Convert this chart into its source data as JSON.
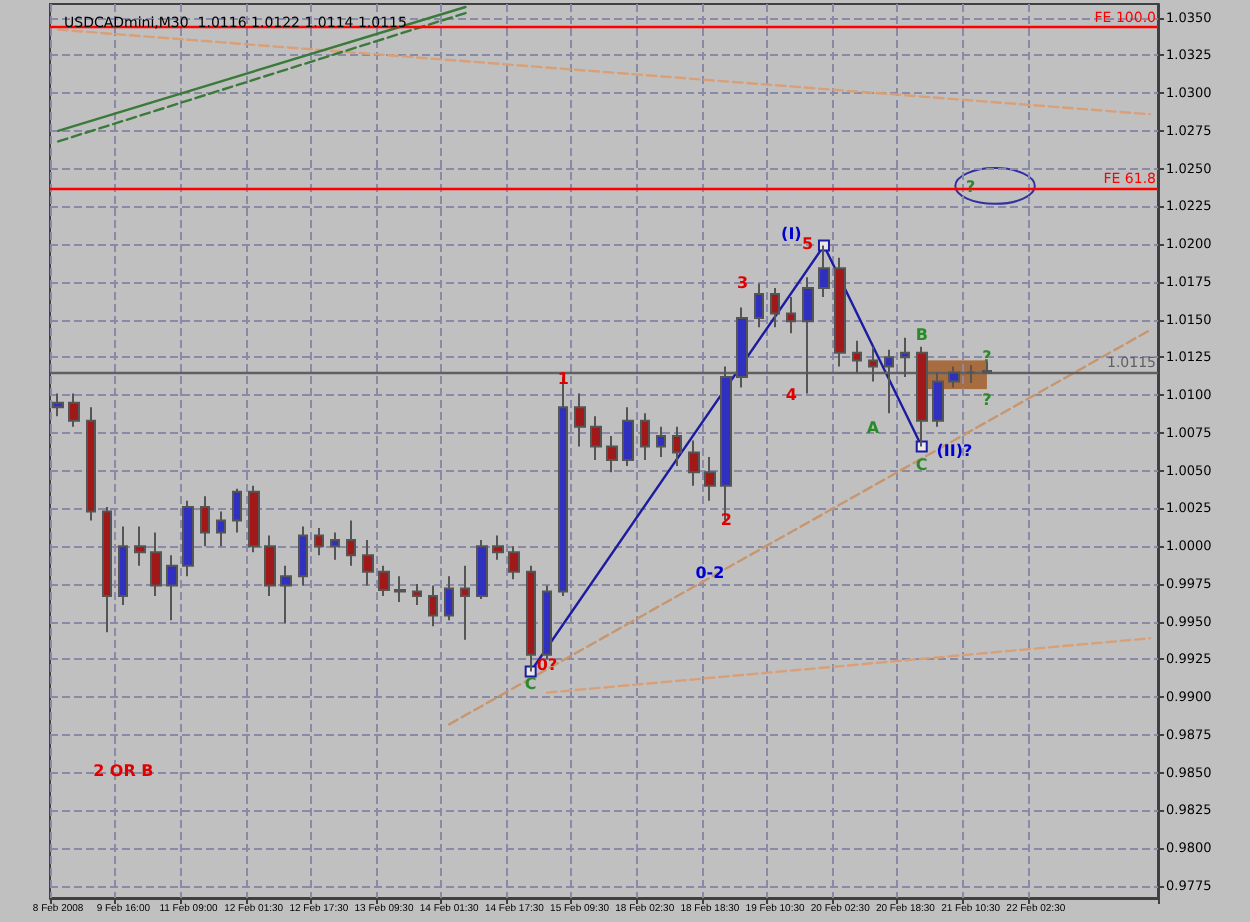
{
  "chart_data": {
    "type": "candlestick",
    "title": "USDCADmini,M30  1.0116 1.0122 1.0114 1.0115",
    "categories": [
      "8 Feb 2008",
      null,
      null,
      null,
      "9 Feb 16:00",
      null,
      null,
      null,
      "11 Feb 09:00",
      null,
      null,
      null,
      "12 Feb 01:30",
      null,
      null,
      null,
      "12 Feb 17:30",
      null,
      null,
      null,
      "13 Feb 09:30",
      null,
      null,
      null,
      "14 Feb 01:30",
      null,
      null,
      null,
      "14 Feb 17:30",
      null,
      null,
      null,
      "15 Feb 09:30",
      null,
      null,
      null,
      "18 Feb 02:30",
      null,
      null,
      null,
      "18 Feb 18:30",
      null,
      null,
      null,
      "19 Feb 10:30",
      null,
      null,
      null,
      "20 Feb 02:30",
      null,
      null,
      null,
      "20 Feb 18:30",
      null,
      null,
      null,
      "21 Feb 10:30",
      null,
      null,
      null,
      "22 Feb 02:30",
      null,
      null,
      null,
      null,
      null,
      null,
      null
    ],
    "ohlc": [
      [
        1.0092,
        1.0101,
        1.0086,
        1.0095
      ],
      [
        1.0095,
        1.0101,
        1.0079,
        1.0083
      ],
      [
        1.0083,
        1.0092,
        1.0017,
        1.0023
      ],
      [
        1.0023,
        1.0026,
        0.9943,
        0.9967
      ],
      [
        0.9967,
        1.0013,
        0.9961,
        1.0
      ],
      [
        1.0,
        1.0013,
        0.9987,
        0.9996
      ],
      [
        0.9996,
        1.0009,
        0.9967,
        0.9974
      ],
      [
        0.9974,
        0.9994,
        0.9951,
        0.9987
      ],
      [
        0.9987,
        1.003,
        0.998,
        1.0026
      ],
      [
        1.0026,
        1.0033,
        1.0,
        1.0009
      ],
      [
        1.0009,
        1.0023,
        1.0,
        1.0017
      ],
      [
        1.0017,
        1.0038,
        1.0009,
        1.0036
      ],
      [
        1.0036,
        1.004,
        0.9996,
        1.0
      ],
      [
        1.0,
        1.0007,
        0.9967,
        0.9974
      ],
      [
        0.9974,
        0.9987,
        0.9949,
        0.998
      ],
      [
        0.998,
        1.0013,
        0.9974,
        1.0007
      ],
      [
        1.0007,
        1.0012,
        0.9994,
        1.0
      ],
      [
        1.0,
        1.0009,
        0.9991,
        1.0004
      ],
      [
        1.0004,
        1.0017,
        0.9987,
        0.9994
      ],
      [
        0.9994,
        1.0004,
        0.9974,
        0.9983
      ],
      [
        0.9983,
        0.9987,
        0.9967,
        0.9971
      ],
      [
        0.9971,
        0.998,
        0.9963,
        0.997
      ],
      [
        0.997,
        0.9975,
        0.9961,
        0.9967
      ],
      [
        0.9967,
        0.9974,
        0.9947,
        0.9954
      ],
      [
        0.9954,
        0.998,
        0.9951,
        0.9972
      ],
      [
        0.9972,
        0.9987,
        0.9938,
        0.9967
      ],
      [
        0.9967,
        1.0004,
        0.9965,
        1.0
      ],
      [
        1.0,
        1.0007,
        0.9991,
        0.9996
      ],
      [
        0.9996,
        1.0,
        0.9978,
        0.9983
      ],
      [
        0.9983,
        0.9987,
        0.9917,
        0.9928
      ],
      [
        0.9928,
        0.9974,
        0.9925,
        0.997
      ],
      [
        0.997,
        1.0112,
        0.9967,
        1.0092
      ],
      [
        1.0092,
        1.0101,
        1.0066,
        1.0079
      ],
      [
        1.0079,
        1.0086,
        1.0057,
        1.0066
      ],
      [
        1.0066,
        1.0073,
        1.0049,
        1.0057
      ],
      [
        1.0057,
        1.0092,
        1.0053,
        1.0083
      ],
      [
        1.0083,
        1.0088,
        1.0057,
        1.0066
      ],
      [
        1.0066,
        1.0079,
        1.0059,
        1.0073
      ],
      [
        1.0073,
        1.0079,
        1.0053,
        1.0062
      ],
      [
        1.0062,
        1.007,
        1.004,
        1.0049
      ],
      [
        1.0049,
        1.0059,
        1.003,
        1.004
      ],
      [
        1.004,
        1.0119,
        1.0017,
        1.0112
      ],
      [
        1.0112,
        1.0158,
        1.0105,
        1.0151
      ],
      [
        1.0151,
        1.0174,
        1.0145,
        1.0167
      ],
      [
        1.0167,
        1.0171,
        1.0145,
        1.0154
      ],
      [
        1.0154,
        1.0165,
        1.0141,
        1.0149
      ],
      [
        1.0149,
        1.0178,
        1.0101,
        1.0171
      ],
      [
        1.0171,
        1.0199,
        1.0165,
        1.0184
      ],
      [
        1.0184,
        1.0191,
        1.0119,
        1.0128
      ],
      [
        1.0128,
        1.0136,
        1.0115,
        1.0123
      ],
      [
        1.0123,
        1.0132,
        1.0109,
        1.0119
      ],
      [
        1.0119,
        1.013,
        1.0088,
        1.0125
      ],
      [
        1.0125,
        1.0138,
        1.0112,
        1.0128
      ],
      [
        1.0128,
        1.0132,
        1.0066,
        1.0083
      ],
      [
        1.0083,
        1.0115,
        1.0079,
        1.0109
      ],
      [
        1.0109,
        1.0119,
        1.0105,
        1.0115
      ],
      [
        1.0115,
        1.012,
        1.0108,
        1.0115
      ],
      [
        1.0116,
        1.0122,
        1.0114,
        1.0115
      ],
      null,
      null,
      null,
      null,
      null,
      null,
      null,
      null,
      null,
      null
    ],
    "ylim": [
      0.9767,
      1.0359
    ],
    "yticks": [
      0.9775,
      {
        "value": 0.98,
        "label": "0.9800"
      },
      0.9825,
      {
        "value": 0.985,
        "label": "0.9850"
      },
      0.9875,
      {
        "value": 0.99,
        "label": "0.9900"
      },
      0.9925,
      {
        "value": 0.995,
        "label": "0.9950"
      },
      0.9975,
      {
        "value": 1,
        "label": "1.0000"
      },
      1.0025,
      {
        "value": 1.005,
        "label": "1.0050"
      },
      1.0075,
      {
        "value": 1.01,
        "label": "1.0100"
      },
      1.0125,
      {
        "value": 1.015,
        "label": "1.0150"
      },
      1.0175,
      {
        "value": 1.02,
        "label": "1.0200"
      },
      1.0225,
      {
        "value": 1.025,
        "label": "1.0250"
      },
      1.0275,
      {
        "value": 1.03,
        "label": "1.0300"
      },
      1.0325,
      {
        "value": 1.035,
        "label": "1.0350"
      }
    ],
    "grid": true,
    "series": [
      {
        "type": "line",
        "color": "#1c1ca0",
        "marker": "square",
        "line_style": "solid",
        "values": [
          null,
          null,
          null,
          null,
          null,
          null,
          null,
          null,
          null,
          null,
          null,
          null,
          null,
          null,
          null,
          null,
          null,
          null,
          null,
          null,
          null,
          null,
          null,
          null,
          null,
          null,
          null,
          null,
          null,
          0.9917,
          null,
          null,
          null,
          null,
          null,
          null,
          null,
          null,
          null,
          null,
          null,
          null,
          null,
          null,
          null,
          null,
          null,
          1.0199,
          null,
          null,
          null,
          null,
          null,
          1.0066,
          null,
          null,
          null,
          null,
          null,
          null,
          null,
          null,
          null,
          null,
          null,
          null,
          null,
          null
        ]
      },
      {
        "type": "line",
        "color": "#c8966e",
        "marker": "none",
        "line_style": "dashed",
        "values": [
          null,
          null,
          null,
          null,
          null,
          null,
          null,
          null,
          null,
          null,
          null,
          null,
          null,
          null,
          null,
          null,
          null,
          null,
          null,
          null,
          null,
          null,
          null,
          null,
          0.9882,
          null,
          null,
          null,
          null,
          null,
          null,
          null,
          null,
          null,
          null,
          null,
          null,
          null,
          null,
          null,
          null,
          null,
          null,
          null,
          null,
          null,
          null,
          null,
          null,
          null,
          null,
          null,
          null,
          null,
          null,
          null,
          null,
          null,
          null,
          null,
          null,
          null,
          null,
          null,
          null,
          null,
          null,
          1.0143
        ]
      },
      {
        "type": "line",
        "color": "#d9a078",
        "marker": "none",
        "line_style": "dashed",
        "values": [
          1.0342,
          null,
          null,
          null,
          null,
          null,
          null,
          null,
          null,
          null,
          null,
          null,
          null,
          null,
          null,
          null,
          null,
          null,
          null,
          null,
          null,
          null,
          null,
          null,
          null,
          null,
          null,
          null,
          null,
          null,
          null,
          null,
          null,
          null,
          null,
          null,
          null,
          null,
          null,
          null,
          null,
          null,
          null,
          null,
          null,
          null,
          null,
          null,
          null,
          null,
          null,
          null,
          null,
          null,
          null,
          null,
          null,
          null,
          null,
          null,
          null,
          null,
          null,
          null,
          null,
          null,
          null,
          1.0286
        ]
      },
      {
        "type": "line",
        "color": "#d9a078",
        "marker": "none",
        "line_style": "dashed",
        "values": [
          null,
          null,
          null,
          null,
          null,
          null,
          null,
          null,
          null,
          null,
          null,
          null,
          null,
          null,
          null,
          null,
          null,
          null,
          null,
          null,
          null,
          null,
          null,
          null,
          null,
          null,
          null,
          null,
          null,
          null,
          0.9903,
          null,
          null,
          null,
          null,
          null,
          null,
          null,
          null,
          null,
          null,
          null,
          null,
          null,
          null,
          null,
          null,
          null,
          null,
          null,
          null,
          null,
          null,
          null,
          null,
          null,
          null,
          null,
          null,
          null,
          null,
          null,
          null,
          null,
          null,
          null,
          null,
          0.9939
        ]
      },
      {
        "type": "line",
        "color": "#3a7a3a",
        "marker": "none",
        "line_style": "solid",
        "values": [
          1.0275,
          null,
          null,
          null,
          null,
          null,
          null,
          null,
          null,
          null,
          null,
          null,
          null,
          null,
          null,
          null,
          null,
          null,
          null,
          null,
          null,
          null,
          null,
          null,
          null,
          1.0357,
          null,
          null,
          null,
          null,
          null,
          null,
          null,
          null,
          null,
          null,
          null,
          null,
          null,
          null,
          null,
          null,
          null,
          null,
          null,
          null,
          null,
          null,
          null,
          null,
          null,
          null,
          null,
          null,
          null,
          null,
          null,
          null,
          null,
          null,
          null,
          null,
          null,
          null,
          null,
          null,
          null,
          null
        ]
      },
      {
        "type": "line",
        "color": "#3a7a3a",
        "marker": "none",
        "line_style": "dashed",
        "values": [
          1.0268,
          null,
          null,
          null,
          null,
          null,
          null,
          null,
          null,
          null,
          null,
          null,
          null,
          null,
          null,
          null,
          null,
          null,
          null,
          null,
          null,
          null,
          null,
          null,
          null,
          1.0353,
          null,
          null,
          null,
          null,
          null,
          null,
          null,
          null,
          null,
          null,
          null,
          null,
          null,
          null,
          null,
          null,
          null,
          null,
          null,
          null,
          null,
          null,
          null,
          null,
          null,
          null,
          null,
          null,
          null,
          null,
          null,
          null,
          null,
          null,
          null,
          null,
          null,
          null,
          null,
          null,
          null,
          null
        ]
      }
    ],
    "ref_lines": [
      {
        "axis": "y",
        "value": 1.0344,
        "label": "FE 100.0",
        "color": "#ff0000"
      },
      {
        "axis": "y",
        "value": 1.0237,
        "label": "FE 61.8",
        "color": "#ff0000"
      },
      {
        "axis": "y",
        "value": 1.0115,
        "label": "1.0115",
        "color": "#606060"
      }
    ],
    "annotations": [
      "(I)",
      "5",
      "3",
      "1",
      "4",
      "2",
      "0?",
      "C",
      "0-2",
      "B",
      "A",
      "C",
      "(II)?",
      "?",
      "?",
      "?",
      "2 OR B"
    ]
  }
}
